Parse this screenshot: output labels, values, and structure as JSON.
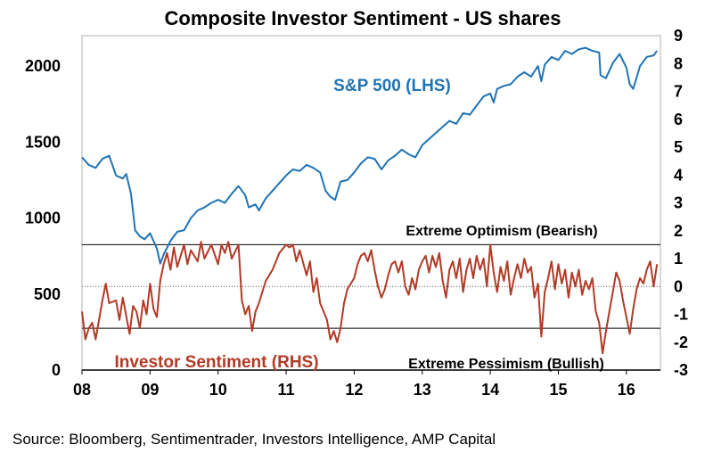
{
  "chart_data": {
    "type": "line",
    "title": "Composite Investor Sentiment - US shares",
    "x_ticks": [
      "08",
      "09",
      "10",
      "11",
      "12",
      "13",
      "14",
      "15",
      "16"
    ],
    "x_range": [
      2008.0,
      2016.5
    ],
    "y_left": {
      "ticks": [
        "0",
        "500",
        "1000",
        "1500",
        "2000"
      ],
      "range": [
        0,
        2200
      ]
    },
    "y_right": {
      "ticks": [
        "-3",
        "-2",
        "-1",
        "0",
        "1",
        "2",
        "3",
        "4",
        "5",
        "6",
        "7",
        "8",
        "9"
      ],
      "range": [
        -3,
        9
      ]
    },
    "grid": false,
    "reference_lines": [
      {
        "label": "Extreme Optimism (Bearish)",
        "axis": "right",
        "value": 1.5,
        "style": "solid"
      },
      {
        "label": "",
        "axis": "right",
        "value": 0,
        "style": "dotted"
      },
      {
        "label": "Extreme Pessimism (Bullish)",
        "axis": "right",
        "value": -1.5,
        "style": "solid"
      }
    ],
    "series": [
      {
        "name": "S&P 500 (LHS)",
        "axis": "left",
        "color": "#1f74b5",
        "points": [
          [
            2008.0,
            1400
          ],
          [
            2008.1,
            1350
          ],
          [
            2008.2,
            1330
          ],
          [
            2008.3,
            1390
          ],
          [
            2008.4,
            1410
          ],
          [
            2008.5,
            1280
          ],
          [
            2008.6,
            1260
          ],
          [
            2008.65,
            1290
          ],
          [
            2008.72,
            1160
          ],
          [
            2008.78,
            920
          ],
          [
            2008.85,
            880
          ],
          [
            2008.92,
            860
          ],
          [
            2009.0,
            900
          ],
          [
            2009.1,
            800
          ],
          [
            2009.15,
            700
          ],
          [
            2009.2,
            760
          ],
          [
            2009.3,
            850
          ],
          [
            2009.4,
            910
          ],
          [
            2009.5,
            920
          ],
          [
            2009.6,
            1000
          ],
          [
            2009.7,
            1050
          ],
          [
            2009.8,
            1070
          ],
          [
            2009.9,
            1100
          ],
          [
            2010.0,
            1120
          ],
          [
            2010.1,
            1100
          ],
          [
            2010.2,
            1160
          ],
          [
            2010.3,
            1210
          ],
          [
            2010.4,
            1150
          ],
          [
            2010.45,
            1070
          ],
          [
            2010.55,
            1090
          ],
          [
            2010.6,
            1050
          ],
          [
            2010.7,
            1130
          ],
          [
            2010.8,
            1180
          ],
          [
            2010.9,
            1230
          ],
          [
            2011.0,
            1280
          ],
          [
            2011.1,
            1320
          ],
          [
            2011.2,
            1310
          ],
          [
            2011.3,
            1350
          ],
          [
            2011.4,
            1330
          ],
          [
            2011.5,
            1300
          ],
          [
            2011.58,
            1180
          ],
          [
            2011.65,
            1140
          ],
          [
            2011.72,
            1120
          ],
          [
            2011.8,
            1240
          ],
          [
            2011.9,
            1250
          ],
          [
            2012.0,
            1300
          ],
          [
            2012.1,
            1360
          ],
          [
            2012.2,
            1400
          ],
          [
            2012.3,
            1390
          ],
          [
            2012.4,
            1320
          ],
          [
            2012.5,
            1380
          ],
          [
            2012.6,
            1410
          ],
          [
            2012.7,
            1450
          ],
          [
            2012.8,
            1420
          ],
          [
            2012.9,
            1400
          ],
          [
            2013.0,
            1480
          ],
          [
            2013.1,
            1520
          ],
          [
            2013.2,
            1560
          ],
          [
            2013.3,
            1600
          ],
          [
            2013.4,
            1640
          ],
          [
            2013.5,
            1620
          ],
          [
            2013.6,
            1690
          ],
          [
            2013.7,
            1680
          ],
          [
            2013.8,
            1740
          ],
          [
            2013.9,
            1800
          ],
          [
            2014.0,
            1820
          ],
          [
            2014.05,
            1760
          ],
          [
            2014.1,
            1850
          ],
          [
            2014.2,
            1870
          ],
          [
            2014.3,
            1880
          ],
          [
            2014.4,
            1930
          ],
          [
            2014.5,
            1960
          ],
          [
            2014.6,
            1930
          ],
          [
            2014.7,
            2000
          ],
          [
            2014.75,
            1900
          ],
          [
            2014.8,
            2010
          ],
          [
            2014.9,
            2060
          ],
          [
            2015.0,
            2040
          ],
          [
            2015.1,
            2100
          ],
          [
            2015.2,
            2080
          ],
          [
            2015.3,
            2110
          ],
          [
            2015.4,
            2120
          ],
          [
            2015.5,
            2100
          ],
          [
            2015.6,
            2090
          ],
          [
            2015.62,
            1940
          ],
          [
            2015.7,
            1920
          ],
          [
            2015.8,
            2020
          ],
          [
            2015.9,
            2080
          ],
          [
            2016.0,
            1990
          ],
          [
            2016.05,
            1880
          ],
          [
            2016.1,
            1850
          ],
          [
            2016.2,
            2000
          ],
          [
            2016.3,
            2060
          ],
          [
            2016.4,
            2070
          ],
          [
            2016.45,
            2100
          ]
        ]
      },
      {
        "name": "Investor Sentiment (RHS)",
        "axis": "right",
        "color": "#b23a26",
        "points": [
          [
            2008.0,
            -0.9
          ],
          [
            2008.05,
            -1.9
          ],
          [
            2008.1,
            -1.5
          ],
          [
            2008.15,
            -1.3
          ],
          [
            2008.2,
            -1.9
          ],
          [
            2008.3,
            -0.5
          ],
          [
            2008.35,
            0.1
          ],
          [
            2008.4,
            -0.6
          ],
          [
            2008.5,
            -0.5
          ],
          [
            2008.55,
            -1.2
          ],
          [
            2008.6,
            -0.4
          ],
          [
            2008.7,
            -1.7
          ],
          [
            2008.75,
            -0.7
          ],
          [
            2008.8,
            -0.9
          ],
          [
            2008.85,
            -1.5
          ],
          [
            2008.9,
            -0.5
          ],
          [
            2008.95,
            -1.0
          ],
          [
            2009.0,
            0.1
          ],
          [
            2009.05,
            -0.8
          ],
          [
            2009.1,
            -1.1
          ],
          [
            2009.15,
            0.2
          ],
          [
            2009.2,
            0.8
          ],
          [
            2009.25,
            1.2
          ],
          [
            2009.3,
            0.6
          ],
          [
            2009.35,
            1.4
          ],
          [
            2009.4,
            0.7
          ],
          [
            2009.5,
            1.5
          ],
          [
            2009.55,
            0.8
          ],
          [
            2009.6,
            1.3
          ],
          [
            2009.7,
            0.9
          ],
          [
            2009.75,
            1.6
          ],
          [
            2009.8,
            1.0
          ],
          [
            2009.9,
            1.5
          ],
          [
            2010.0,
            0.8
          ],
          [
            2010.05,
            1.5
          ],
          [
            2010.1,
            1.2
          ],
          [
            2010.15,
            1.6
          ],
          [
            2010.2,
            1.0
          ],
          [
            2010.3,
            1.5
          ],
          [
            2010.35,
            -0.5
          ],
          [
            2010.4,
            -1.0
          ],
          [
            2010.45,
            -0.7
          ],
          [
            2010.5,
            -1.6
          ],
          [
            2010.55,
            -0.9
          ],
          [
            2010.6,
            -0.6
          ],
          [
            2010.7,
            0.2
          ],
          [
            2010.8,
            0.6
          ],
          [
            2010.9,
            1.2
          ],
          [
            2011.0,
            1.5
          ],
          [
            2011.05,
            1.4
          ],
          [
            2011.1,
            1.5
          ],
          [
            2011.15,
            0.9
          ],
          [
            2011.2,
            1.3
          ],
          [
            2011.3,
            0.4
          ],
          [
            2011.35,
            0.9
          ],
          [
            2011.4,
            -0.2
          ],
          [
            2011.45,
            0.3
          ],
          [
            2011.5,
            -0.6
          ],
          [
            2011.55,
            -0.9
          ],
          [
            2011.6,
            -1.2
          ],
          [
            2011.65,
            -1.9
          ],
          [
            2011.7,
            -1.6
          ],
          [
            2011.75,
            -2.0
          ],
          [
            2011.8,
            -1.5
          ],
          [
            2011.85,
            -0.6
          ],
          [
            2011.9,
            -0.1
          ],
          [
            2012.0,
            0.3
          ],
          [
            2012.05,
            0.8
          ],
          [
            2012.1,
            1.1
          ],
          [
            2012.15,
            1.2
          ],
          [
            2012.2,
            0.9
          ],
          [
            2012.25,
            1.3
          ],
          [
            2012.3,
            0.6
          ],
          [
            2012.35,
            0.0
          ],
          [
            2012.4,
            -0.4
          ],
          [
            2012.45,
            -0.1
          ],
          [
            2012.5,
            0.4
          ],
          [
            2012.55,
            0.8
          ],
          [
            2012.6,
            0.9
          ],
          [
            2012.65,
            0.5
          ],
          [
            2012.7,
            0.9
          ],
          [
            2012.75,
            0.0
          ],
          [
            2012.8,
            -0.3
          ],
          [
            2012.85,
            0.3
          ],
          [
            2012.9,
            -0.1
          ],
          [
            2012.95,
            0.6
          ],
          [
            2013.0,
            0.9
          ],
          [
            2013.05,
            1.1
          ],
          [
            2013.1,
            0.5
          ],
          [
            2013.15,
            1.1
          ],
          [
            2013.2,
            0.7
          ],
          [
            2013.25,
            1.2
          ],
          [
            2013.3,
            0.2
          ],
          [
            2013.35,
            -0.4
          ],
          [
            2013.4,
            0.6
          ],
          [
            2013.45,
            0.9
          ],
          [
            2013.5,
            0.3
          ],
          [
            2013.55,
            1.0
          ],
          [
            2013.6,
            -0.2
          ],
          [
            2013.65,
            0.6
          ],
          [
            2013.7,
            1.0
          ],
          [
            2013.75,
            0.3
          ],
          [
            2013.8,
            1.1
          ],
          [
            2013.85,
            0.6
          ],
          [
            2013.9,
            1.0
          ],
          [
            2013.95,
            0.0
          ],
          [
            2014.0,
            1.5
          ],
          [
            2014.05,
            0.5
          ],
          [
            2014.1,
            -0.2
          ],
          [
            2014.15,
            0.7
          ],
          [
            2014.2,
            0.2
          ],
          [
            2014.25,
            0.9
          ],
          [
            2014.3,
            -0.3
          ],
          [
            2014.35,
            0.3
          ],
          [
            2014.4,
            0.8
          ],
          [
            2014.45,
            0.3
          ],
          [
            2014.5,
            1.0
          ],
          [
            2014.55,
            0.5
          ],
          [
            2014.6,
            0.7
          ],
          [
            2014.65,
            -0.4
          ],
          [
            2014.7,
            0.1
          ],
          [
            2014.75,
            -1.8
          ],
          [
            2014.8,
            -0.2
          ],
          [
            2014.85,
            0.3
          ],
          [
            2014.9,
            0.9
          ],
          [
            2014.95,
            -0.1
          ],
          [
            2015.0,
            0.8
          ],
          [
            2015.05,
            0.1
          ],
          [
            2015.1,
            0.6
          ],
          [
            2015.15,
            -0.4
          ],
          [
            2015.2,
            0.5
          ],
          [
            2015.25,
            0.0
          ],
          [
            2015.3,
            0.6
          ],
          [
            2015.35,
            -0.3
          ],
          [
            2015.4,
            0.2
          ],
          [
            2015.45,
            -0.1
          ],
          [
            2015.5,
            0.3
          ],
          [
            2015.55,
            -0.9
          ],
          [
            2015.6,
            -1.3
          ],
          [
            2015.65,
            -2.4
          ],
          [
            2015.7,
            -1.6
          ],
          [
            2015.75,
            -0.9
          ],
          [
            2015.8,
            -0.2
          ],
          [
            2015.85,
            0.5
          ],
          [
            2015.9,
            0.2
          ],
          [
            2015.95,
            -0.5
          ],
          [
            2016.0,
            -1.1
          ],
          [
            2016.05,
            -1.7
          ],
          [
            2016.1,
            -0.8
          ],
          [
            2016.15,
            -0.1
          ],
          [
            2016.2,
            0.3
          ],
          [
            2016.25,
            0.1
          ],
          [
            2016.3,
            0.6
          ],
          [
            2016.35,
            0.9
          ],
          [
            2016.4,
            0.0
          ],
          [
            2016.45,
            0.8
          ]
        ]
      }
    ],
    "source": "Source: Bloomberg, Sentimentrader, Investors Intelligence, AMP Capital"
  }
}
